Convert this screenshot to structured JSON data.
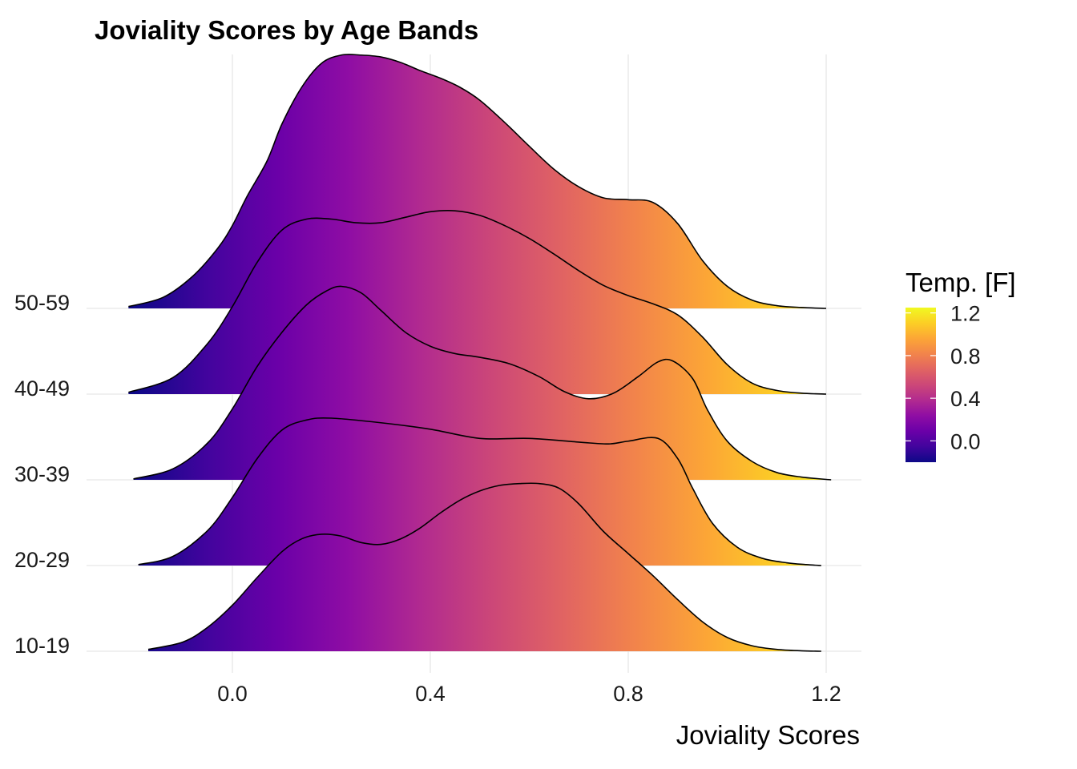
{
  "chart_data": {
    "type": "ridgeline",
    "title": "Joviality Scores by Age Bands",
    "xlabel": "Joviality Scores",
    "ylabel": "",
    "xlim": [
      -0.27,
      1.27
    ],
    "x_ticks": [
      "0.0",
      "0.4",
      "0.8",
      "1.2"
    ],
    "x_tick_values": [
      0.0,
      0.4,
      0.8,
      1.2
    ],
    "grid": true,
    "legend": {
      "title": "Temp. [F]",
      "placement": "right",
      "range": [
        -0.2,
        1.25
      ],
      "tick_labels": [
        "1.2",
        "0.8",
        "0.4",
        "0.0"
      ],
      "tick_values": [
        1.2,
        0.8,
        0.4,
        0.0
      ],
      "colors": [
        "#0d0887",
        "#41049d",
        "#6a00a8",
        "#8f0da4",
        "#b12a90",
        "#cc4778",
        "#e16462",
        "#f2844b",
        "#fca636",
        "#fcce25",
        "#f0f921"
      ]
    },
    "series": [
      {
        "name": "10-19",
        "range": [
          -0.17,
          1.19
        ],
        "x": [
          -0.17,
          -0.1,
          -0.05,
          0.0,
          0.05,
          0.1,
          0.14,
          0.18,
          0.22,
          0.26,
          0.3,
          0.34,
          0.38,
          0.42,
          0.46,
          0.5,
          0.54,
          0.58,
          0.62,
          0.66,
          0.7,
          0.75,
          0.8,
          0.85,
          0.9,
          0.95,
          1.0,
          1.05,
          1.1,
          1.15,
          1.19
        ],
        "y": [
          0.02,
          0.1,
          0.26,
          0.5,
          0.8,
          1.08,
          1.22,
          1.27,
          1.25,
          1.18,
          1.16,
          1.22,
          1.34,
          1.5,
          1.64,
          1.74,
          1.8,
          1.82,
          1.82,
          1.77,
          1.6,
          1.3,
          1.06,
          0.82,
          0.56,
          0.32,
          0.15,
          0.06,
          0.02,
          0.005,
          0.0
        ]
      },
      {
        "name": "20-29",
        "range": [
          -0.19,
          1.19
        ],
        "x": [
          -0.19,
          -0.12,
          -0.05,
          0.0,
          0.05,
          0.1,
          0.15,
          0.2,
          0.3,
          0.4,
          0.5,
          0.6,
          0.7,
          0.76,
          0.8,
          0.86,
          0.9,
          0.93,
          0.97,
          1.02,
          1.07,
          1.12,
          1.16,
          1.19
        ],
        "y": [
          0.01,
          0.1,
          0.38,
          0.74,
          1.16,
          1.47,
          1.58,
          1.6,
          1.55,
          1.48,
          1.38,
          1.38,
          1.34,
          1.32,
          1.35,
          1.38,
          1.16,
          0.84,
          0.46,
          0.2,
          0.08,
          0.03,
          0.01,
          0.0
        ]
      },
      {
        "name": "30-39",
        "range": [
          -0.2,
          1.21
        ],
        "x": [
          -0.2,
          -0.12,
          -0.05,
          0.0,
          0.05,
          0.1,
          0.15,
          0.19,
          0.22,
          0.26,
          0.3,
          0.35,
          0.4,
          0.45,
          0.5,
          0.56,
          0.62,
          0.67,
          0.72,
          0.77,
          0.82,
          0.86,
          0.89,
          0.93,
          0.96,
          1.0,
          1.05,
          1.1,
          1.15,
          1.21
        ],
        "y": [
          0.01,
          0.12,
          0.4,
          0.77,
          1.23,
          1.6,
          1.9,
          2.05,
          2.1,
          2.03,
          1.84,
          1.6,
          1.45,
          1.37,
          1.33,
          1.26,
          1.12,
          0.96,
          0.88,
          0.94,
          1.12,
          1.28,
          1.29,
          1.1,
          0.76,
          0.42,
          0.2,
          0.08,
          0.03,
          0.0
        ]
      },
      {
        "name": "40-49",
        "range": [
          -0.21,
          1.2
        ],
        "x": [
          -0.21,
          -0.12,
          -0.05,
          0.0,
          0.05,
          0.1,
          0.15,
          0.2,
          0.25,
          0.3,
          0.35,
          0.4,
          0.45,
          0.5,
          0.55,
          0.6,
          0.65,
          0.7,
          0.75,
          0.8,
          0.85,
          0.9,
          0.95,
          1.0,
          1.05,
          1.1,
          1.15,
          1.2
        ],
        "y": [
          0.02,
          0.18,
          0.55,
          0.95,
          1.43,
          1.78,
          1.9,
          1.9,
          1.86,
          1.86,
          1.92,
          1.98,
          1.99,
          1.94,
          1.83,
          1.69,
          1.52,
          1.34,
          1.18,
          1.07,
          0.98,
          0.86,
          0.62,
          0.32,
          0.12,
          0.04,
          0.01,
          0.0
        ]
      },
      {
        "name": "50-59",
        "range": [
          -0.21,
          1.2
        ],
        "x": [
          -0.21,
          -0.14,
          -0.08,
          -0.03,
          0.0,
          0.03,
          0.07,
          0.1,
          0.14,
          0.18,
          0.22,
          0.26,
          0.3,
          0.34,
          0.38,
          0.42,
          0.46,
          0.5,
          0.55,
          0.6,
          0.65,
          0.7,
          0.75,
          0.8,
          0.85,
          0.9,
          0.95,
          1.0,
          1.05,
          1.1,
          1.15,
          1.2
        ],
        "y": [
          0.02,
          0.12,
          0.35,
          0.65,
          0.9,
          1.22,
          1.6,
          2.0,
          2.4,
          2.66,
          2.75,
          2.75,
          2.73,
          2.67,
          2.58,
          2.5,
          2.4,
          2.26,
          2.02,
          1.76,
          1.51,
          1.32,
          1.2,
          1.18,
          1.15,
          0.92,
          0.52,
          0.24,
          0.09,
          0.03,
          0.01,
          0.0
        ]
      }
    ]
  }
}
